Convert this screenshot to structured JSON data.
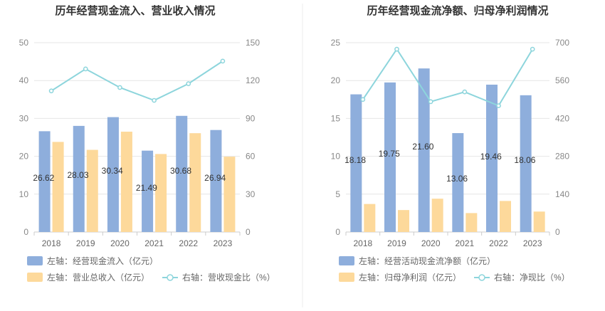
{
  "chart_data": [
    {
      "type": "bar",
      "title": "历年经营现金流入、营业收入情况",
      "categories": [
        "2018",
        "2019",
        "2020",
        "2021",
        "2022",
        "2023"
      ],
      "left_axis": {
        "min": 0,
        "max": 50,
        "ticks": [
          "0",
          "10",
          "20",
          "30",
          "40",
          "50"
        ]
      },
      "right_axis": {
        "min": 0,
        "max": 150,
        "ticks": [
          "0",
          "30",
          "60",
          "90",
          "120",
          "150"
        ]
      },
      "series": [
        {
          "name": "左轴：经营现金流入（亿元）",
          "type": "bar",
          "axis": "left",
          "color": "#8eaedc",
          "values": [
            26.62,
            28.03,
            30.34,
            21.49,
            30.68,
            26.94
          ],
          "labels": [
            "26.62",
            "28.03",
            "30.34",
            "21.49",
            "30.68",
            "26.94"
          ]
        },
        {
          "name": "左轴：营业总收入（亿元）",
          "type": "bar",
          "axis": "left",
          "color": "#fdd99b",
          "values": [
            23.8,
            21.7,
            26.5,
            20.6,
            26.1,
            19.9
          ]
        },
        {
          "name": "右轴：营收现金比（%）",
          "type": "line",
          "axis": "right",
          "color": "#8dd5dc",
          "values": [
            111.8,
            129.2,
            114.5,
            104.3,
            117.5,
            135.4
          ]
        }
      ],
      "grid": true,
      "legend_position": "bottom"
    },
    {
      "type": "bar",
      "title": "历年经营现金流净额、归母净利润情况",
      "categories": [
        "2018",
        "2019",
        "2020",
        "2021",
        "2022",
        "2023"
      ],
      "left_axis": {
        "min": 0,
        "max": 25,
        "ticks": [
          "0",
          "5",
          "10",
          "15",
          "20",
          "25"
        ]
      },
      "right_axis": {
        "min": 0,
        "max": 700,
        "ticks": [
          "0",
          "140",
          "280",
          "420",
          "560",
          "700"
        ]
      },
      "series": [
        {
          "name": "左轴：经营活动现金流净额（亿元）",
          "type": "bar",
          "axis": "left",
          "color": "#8eaedc",
          "values": [
            18.18,
            19.75,
            21.6,
            13.06,
            19.46,
            18.06
          ],
          "labels": [
            "18.18",
            "19.75",
            "21.60",
            "13.06",
            "19.46",
            "18.06"
          ]
        },
        {
          "name": "左轴：归母净利润（亿元）",
          "type": "bar",
          "axis": "left",
          "color": "#fdd99b",
          "values": [
            3.7,
            2.9,
            4.4,
            2.5,
            4.1,
            2.7
          ]
        },
        {
          "name": "右轴：净现比（%）",
          "type": "line",
          "axis": "right",
          "color": "#8dd5dc",
          "values": [
            490,
            676,
            482,
            518,
            467,
            676
          ]
        }
      ],
      "grid": true,
      "legend_position": "bottom"
    }
  ]
}
